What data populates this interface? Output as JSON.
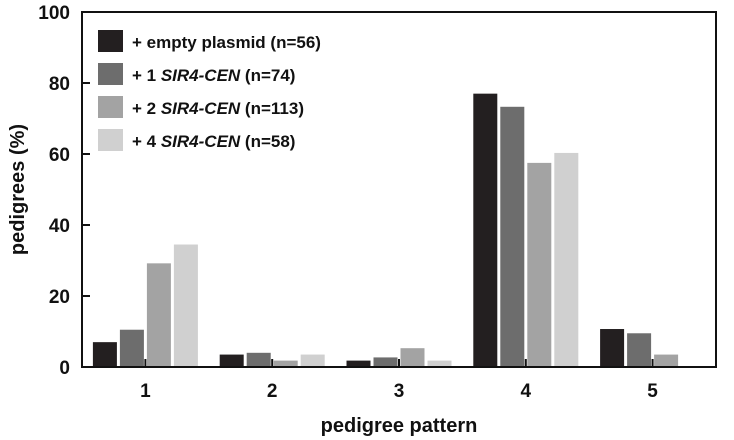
{
  "chart_data": {
    "type": "bar",
    "xlabel": "pedigree pattern",
    "ylabel": "pedigrees (%)",
    "ylim": [
      0,
      100
    ],
    "yticks": [
      0,
      20,
      40,
      60,
      80,
      100
    ],
    "categories": [
      "1",
      "2",
      "3",
      "4",
      "5"
    ],
    "grid": false,
    "legend_position": "top-left",
    "series": [
      {
        "name": "+ empty plasmid (n=56)",
        "name_parts": [
          {
            "text": "+ empty plasmid (n=56)",
            "italic": false
          }
        ],
        "color": "#231f20",
        "values": [
          7,
          3.5,
          1.8,
          77,
          10.7
        ]
      },
      {
        "name": "+ 1 SIR4-CEN (n=74)",
        "name_parts": [
          {
            "text": "+ 1 ",
            "italic": false
          },
          {
            "text": "SIR4-CEN",
            "italic": true
          },
          {
            "text": " (n=74)",
            "italic": false
          }
        ],
        "color": "#6d6d6d",
        "values": [
          10.5,
          4,
          2.7,
          73.3,
          9.5
        ]
      },
      {
        "name": "+ 2 SIR4-CEN (n=113)",
        "name_parts": [
          {
            "text": "+ 2 ",
            "italic": false
          },
          {
            "text": "SIR4-CEN",
            "italic": true
          },
          {
            "text": " (n=113)",
            "italic": false
          }
        ],
        "color": "#a3a3a3",
        "values": [
          29.2,
          1.8,
          5.3,
          57.5,
          3.5
        ]
      },
      {
        "name": "+ 4 SIR4-CEN (n=58)",
        "name_parts": [
          {
            "text": "+ 4 ",
            "italic": false
          },
          {
            "text": "SIR4-CEN",
            "italic": true
          },
          {
            "text": " (n=58)",
            "italic": false
          }
        ],
        "color": "#d0d0d0",
        "values": [
          34.5,
          3.5,
          1.8,
          60.3,
          0
        ]
      }
    ]
  }
}
